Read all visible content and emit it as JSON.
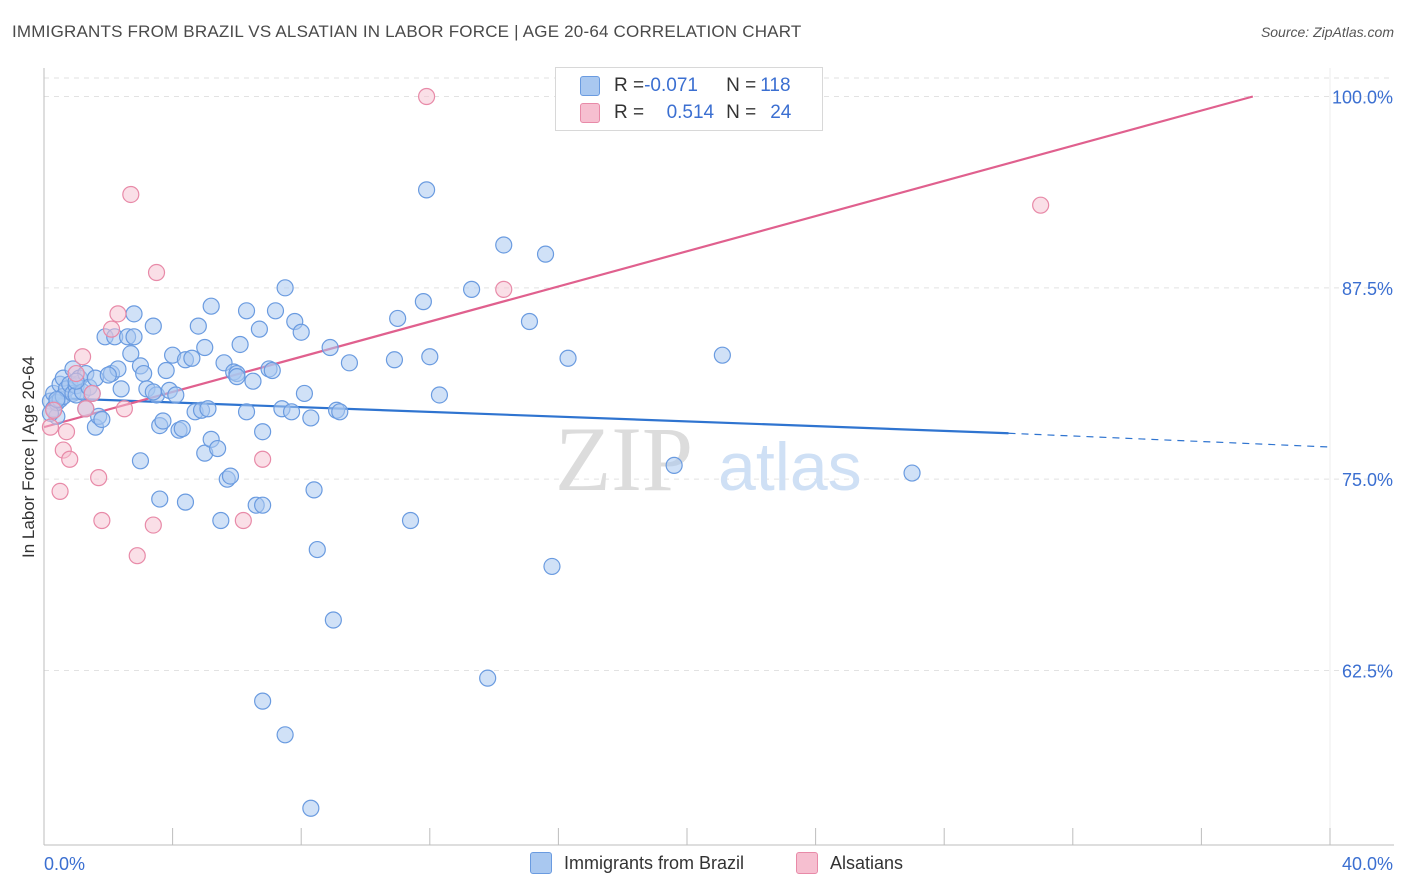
{
  "header": {
    "title": "IMMIGRANTS FROM BRAZIL VS ALSATIAN IN LABOR FORCE | AGE 20-64 CORRELATION CHART",
    "source": "Source: ZipAtlas.com"
  },
  "watermark": {
    "zip": "ZIP",
    "atlas": "atlas"
  },
  "legend": {
    "rows": [
      {
        "r_label": "R = ",
        "r_value": "-0.071",
        "n_label": "N = ",
        "n_value": "118"
      },
      {
        "r_label": "R = ",
        "r_value": "0.514",
        "n_label": "N = ",
        "n_value": "24"
      }
    ]
  },
  "colors": {
    "brazil_fill": "#a9c8f0",
    "brazil_stroke": "#6a9be0",
    "brazil_line": "#2f74d0",
    "alsatian_fill": "#f6bfd0",
    "alsatian_stroke": "#e88aa8",
    "alsatian_line": "#e0608e",
    "axis_label": "#3b6fd1",
    "grid": "#e2e2e2"
  },
  "chart_data": {
    "type": "scatter",
    "title": "IMMIGRANTS FROM BRAZIL VS ALSATIAN IN LABOR FORCE | AGE 20-64 CORRELATION CHART",
    "xlabel": "",
    "ylabel": "In Labor Force | Age 20-64",
    "xlim": [
      0,
      40
    ],
    "ylim": [
      52.5,
      101.3
    ],
    "x_tick_labels": [
      "0.0%",
      "40.0%"
    ],
    "y_ticks": [
      62.5,
      75.0,
      87.5,
      100.0
    ],
    "y_tick_labels": [
      "62.5%",
      "75.0%",
      "87.5%",
      "100.0%"
    ],
    "grid": true,
    "legend_position": "top-center",
    "series": [
      {
        "name": "Immigrants from Brazil",
        "r": -0.071,
        "n": 118,
        "trend": {
          "x_start": 0.3,
          "y_start": 80.3,
          "x_solid_end": 30.0,
          "y_solid_end": 78.0,
          "x_dashed_end": 40.0,
          "y_dashed_end": 77.1
        },
        "points": [
          [
            0.2,
            80.1
          ],
          [
            0.3,
            79.6
          ],
          [
            0.3,
            80.6
          ],
          [
            0.4,
            79.1
          ],
          [
            0.4,
            80.0
          ],
          [
            0.5,
            81.2
          ],
          [
            0.5,
            80.2
          ],
          [
            0.6,
            81.6
          ],
          [
            0.6,
            80.4
          ],
          [
            0.7,
            80.9
          ],
          [
            0.8,
            81.2
          ],
          [
            0.9,
            80.6
          ],
          [
            0.9,
            82.2
          ],
          [
            1.0,
            81.1
          ],
          [
            1.0,
            80.5
          ],
          [
            1.1,
            81.6
          ],
          [
            1.2,
            80.7
          ],
          [
            1.3,
            81.9
          ],
          [
            1.3,
            79.6
          ],
          [
            1.4,
            81.0
          ],
          [
            1.5,
            80.6
          ],
          [
            1.6,
            78.4
          ],
          [
            1.6,
            81.6
          ],
          [
            1.7,
            79.1
          ],
          [
            1.8,
            78.9
          ],
          [
            1.9,
            84.3
          ],
          [
            2.1,
            81.9
          ],
          [
            2.2,
            84.3
          ],
          [
            2.3,
            82.2
          ],
          [
            2.4,
            80.9
          ],
          [
            2.6,
            84.3
          ],
          [
            2.7,
            83.2
          ],
          [
            2.8,
            84.3
          ],
          [
            2.8,
            85.8
          ],
          [
            3.0,
            76.2
          ],
          [
            3.0,
            82.4
          ],
          [
            3.1,
            81.9
          ],
          [
            3.2,
            80.9
          ],
          [
            3.4,
            85.0
          ],
          [
            3.5,
            80.5
          ],
          [
            3.6,
            78.5
          ],
          [
            3.6,
            73.7
          ],
          [
            3.7,
            78.8
          ],
          [
            3.8,
            82.1
          ],
          [
            3.9,
            80.8
          ],
          [
            4.0,
            83.1
          ],
          [
            4.1,
            80.5
          ],
          [
            4.2,
            78.2
          ],
          [
            4.3,
            78.3
          ],
          [
            4.4,
            82.8
          ],
          [
            4.4,
            73.5
          ],
          [
            4.6,
            82.9
          ],
          [
            4.7,
            79.4
          ],
          [
            4.8,
            85.0
          ],
          [
            4.9,
            79.5
          ],
          [
            5.0,
            83.6
          ],
          [
            5.0,
            76.7
          ],
          [
            5.1,
            79.6
          ],
          [
            5.2,
            86.3
          ],
          [
            5.2,
            77.6
          ],
          [
            5.4,
            77.0
          ],
          [
            5.5,
            72.3
          ],
          [
            5.6,
            82.6
          ],
          [
            5.7,
            75.0
          ],
          [
            5.8,
            75.2
          ],
          [
            5.9,
            82.0
          ],
          [
            6.0,
            81.9
          ],
          [
            6.0,
            81.7
          ],
          [
            6.1,
            83.8
          ],
          [
            6.3,
            86.0
          ],
          [
            6.3,
            79.4
          ],
          [
            6.5,
            81.4
          ],
          [
            6.6,
            73.3
          ],
          [
            6.7,
            84.8
          ],
          [
            6.8,
            73.3
          ],
          [
            6.8,
            78.1
          ],
          [
            7.0,
            82.2
          ],
          [
            7.1,
            82.1
          ],
          [
            7.2,
            86.0
          ],
          [
            7.4,
            79.6
          ],
          [
            7.5,
            87.5
          ],
          [
            7.7,
            79.4
          ],
          [
            7.8,
            85.3
          ],
          [
            8.0,
            84.6
          ],
          [
            8.1,
            80.6
          ],
          [
            8.3,
            79.0
          ],
          [
            8.4,
            74.3
          ],
          [
            8.5,
            70.4
          ],
          [
            8.9,
            83.6
          ],
          [
            9.1,
            79.5
          ],
          [
            9.2,
            79.4
          ],
          [
            9.0,
            65.8
          ],
          [
            9.5,
            82.6
          ],
          [
            10.9,
            82.8
          ],
          [
            11.0,
            85.5
          ],
          [
            11.4,
            72.3
          ],
          [
            11.8,
            86.6
          ],
          [
            11.9,
            93.9
          ],
          [
            12.0,
            83.0
          ],
          [
            12.3,
            80.5
          ],
          [
            13.3,
            87.4
          ],
          [
            13.8,
            62.0
          ],
          [
            14.3,
            90.3
          ],
          [
            15.1,
            85.3
          ],
          [
            15.6,
            89.7
          ],
          [
            15.8,
            69.3
          ],
          [
            16.3,
            82.9
          ],
          [
            19.6,
            75.9
          ],
          [
            21.1,
            83.1
          ],
          [
            27.0,
            75.4
          ],
          [
            6.8,
            60.5
          ],
          [
            7.5,
            58.3
          ],
          [
            8.3,
            53.5
          ],
          [
            0.2,
            79.3
          ],
          [
            0.4,
            80.2
          ],
          [
            1.0,
            81.4
          ],
          [
            2.0,
            81.8
          ],
          [
            3.4,
            80.7
          ]
        ]
      },
      {
        "name": "Alsatians",
        "r": 0.514,
        "n": 24,
        "trend": {
          "x_start": 0.0,
          "y_start": 78.4,
          "x_end": 37.6,
          "y_end": 100.0
        },
        "points": [
          [
            0.2,
            78.4
          ],
          [
            0.3,
            79.5
          ],
          [
            0.5,
            74.2
          ],
          [
            0.6,
            76.9
          ],
          [
            0.7,
            78.1
          ],
          [
            0.8,
            76.3
          ],
          [
            1.0,
            81.9
          ],
          [
            1.2,
            83.0
          ],
          [
            1.3,
            79.6
          ],
          [
            1.5,
            80.6
          ],
          [
            1.7,
            75.1
          ],
          [
            1.8,
            72.3
          ],
          [
            2.1,
            84.8
          ],
          [
            2.3,
            85.8
          ],
          [
            2.5,
            79.6
          ],
          [
            2.7,
            93.6
          ],
          [
            2.9,
            70.0
          ],
          [
            3.4,
            72.0
          ],
          [
            3.5,
            88.5
          ],
          [
            6.2,
            72.3
          ],
          [
            6.8,
            76.3
          ],
          [
            11.9,
            100.0
          ],
          [
            14.3,
            87.4
          ],
          [
            31.0,
            92.9
          ]
        ]
      }
    ]
  }
}
